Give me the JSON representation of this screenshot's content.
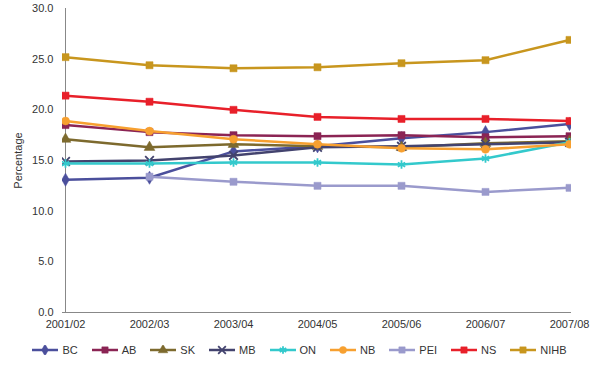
{
  "chart_data": {
    "type": "line",
    "y_label": "Percentage",
    "x": [
      "2001/02",
      "2002/03",
      "2003/04",
      "2004/05",
      "2005/06",
      "2006/07",
      "2007/08"
    ],
    "ylim": [
      0,
      30
    ],
    "yticks": [
      {
        "value": 0,
        "label": "0.0"
      },
      {
        "value": 5,
        "label": "5.0"
      },
      {
        "value": 10,
        "label": "10.0"
      },
      {
        "value": 15,
        "label": "15.0"
      },
      {
        "value": 20,
        "label": "20.0"
      },
      {
        "value": 25,
        "label": "25.0"
      },
      {
        "value": 30,
        "label": "30.0"
      }
    ],
    "grid": false,
    "legend": "bottom",
    "series": [
      {
        "name": "BC",
        "color": "#4b4f9c",
        "marker": "diamond",
        "values": [
          13.1,
          13.3,
          15.9,
          16.4,
          17.2,
          17.8,
          18.6
        ]
      },
      {
        "name": "AB",
        "color": "#8b2454",
        "marker": "square",
        "values": [
          18.5,
          17.8,
          17.5,
          17.4,
          17.5,
          17.3,
          17.4
        ]
      },
      {
        "name": "SK",
        "color": "#7d6a2e",
        "marker": "triangle",
        "values": [
          17.1,
          16.3,
          16.6,
          16.4,
          16.3,
          16.7,
          16.9
        ]
      },
      {
        "name": "MB",
        "color": "#43436e",
        "marker": "times",
        "values": [
          14.9,
          15.0,
          15.5,
          16.3,
          16.4,
          16.6,
          16.8
        ]
      },
      {
        "name": "ON",
        "color": "#33c9cc",
        "marker": "asterisk",
        "values": [
          14.7,
          14.7,
          14.8,
          14.8,
          14.6,
          15.2,
          16.8
        ]
      },
      {
        "name": "NB",
        "color": "#f7a030",
        "marker": "circle",
        "values": [
          18.9,
          17.9,
          17.1,
          16.6,
          16.2,
          16.1,
          16.6
        ]
      },
      {
        "name": "PEI",
        "color": "#9a9acc",
        "marker": "square",
        "values": [
          null,
          13.4,
          12.9,
          12.5,
          12.5,
          11.9,
          12.3
        ]
      },
      {
        "name": "NS",
        "color": "#e8202a",
        "marker": "square",
        "values": [
          21.4,
          20.8,
          20.0,
          19.3,
          19.1,
          19.1,
          18.9
        ]
      },
      {
        "name": "NIHB",
        "color": "#c8961e",
        "marker": "square",
        "values": [
          25.2,
          24.4,
          24.1,
          24.2,
          24.6,
          24.9,
          26.9
        ]
      }
    ]
  }
}
